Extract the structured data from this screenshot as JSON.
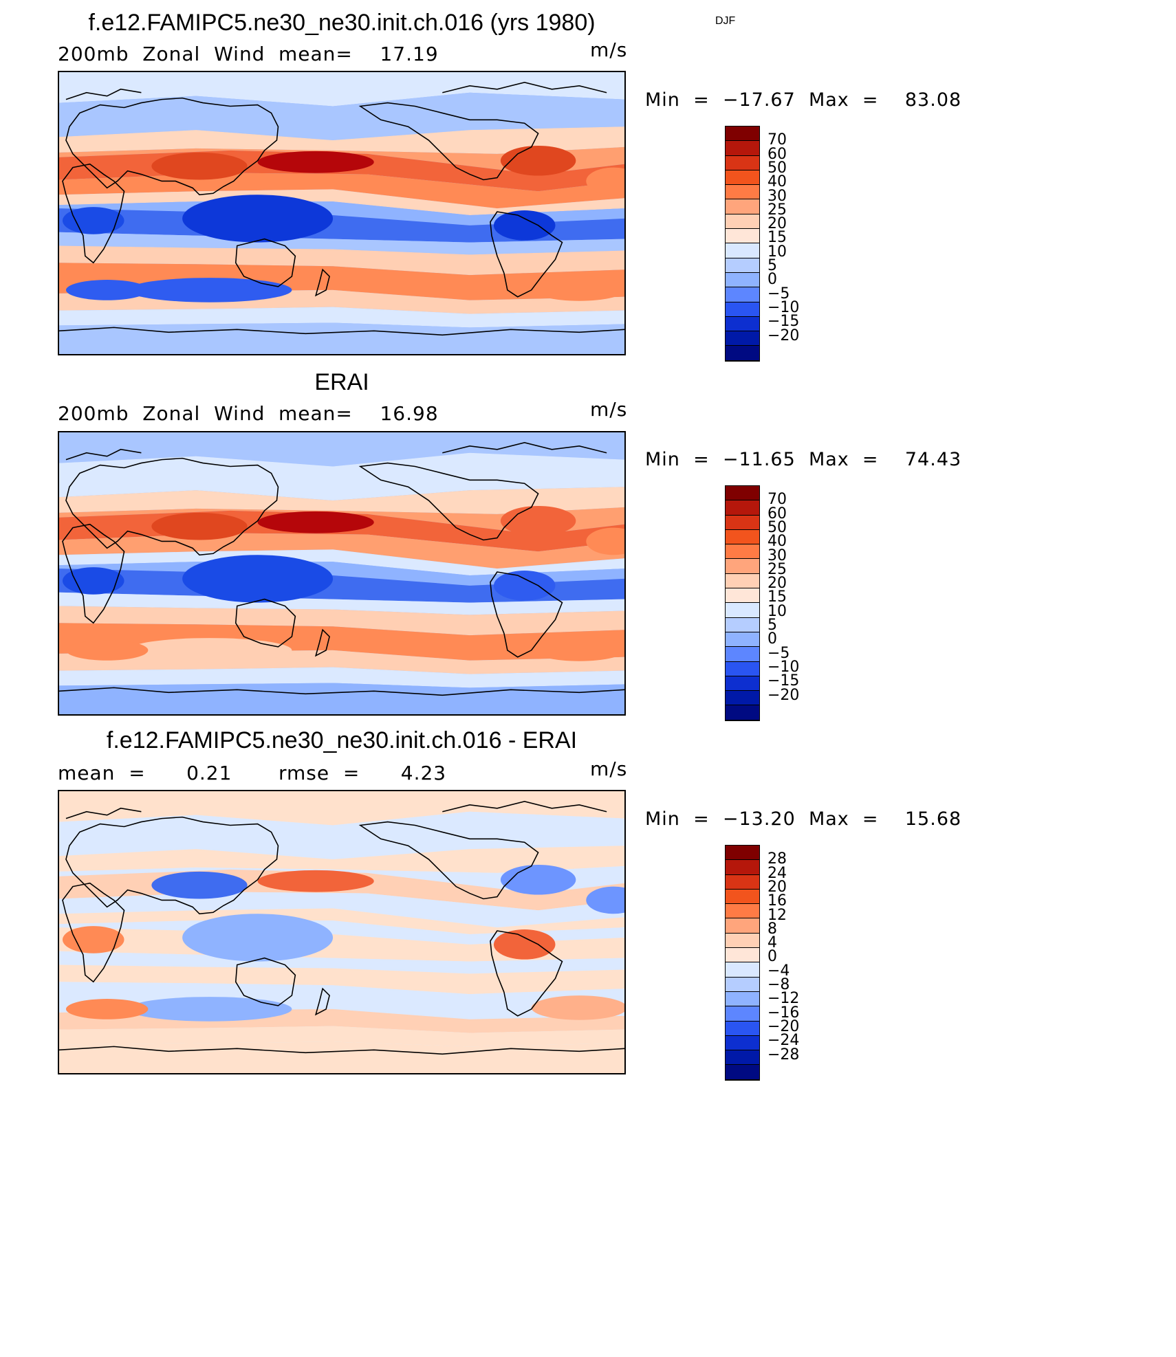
{
  "season": "DJF",
  "panels": [
    {
      "title": "f.e12.FAMIPC5.ne30_ne30.init.ch.016 (yrs 1980)",
      "left_text": "200mb  Zonal  Wind",
      "stat_text": "mean=    17.19",
      "units": "m/s",
      "minmax": "Min  =  −17.67  Max  =    83.08",
      "bg": "#8fb3ff",
      "bands": [
        {
          "c": "#dbe9ff"
        },
        {
          "c": "#a9c6ff"
        },
        {
          "c": "#ffd8bf"
        },
        {
          "c": "#ff9f70"
        },
        {
          "c": "#f2643a"
        },
        {
          "c": "#ff8a55"
        },
        {
          "c": "#ffd6bd"
        },
        {
          "c": "#8fb3ff"
        },
        {
          "c": "#3f6cf0"
        },
        {
          "c": "#a9c6ff"
        },
        {
          "c": "#ffcfb3"
        },
        {
          "c": "#ff8a55"
        },
        {
          "c": "#ffcfb3"
        },
        {
          "c": "#dbe9ff"
        },
        {
          "c": "#a9c6ff"
        }
      ],
      "blobs": [
        {
          "c": "#b5060a"
        },
        {
          "c": "#e0471f"
        },
        {
          "c": "#e0471f"
        },
        {
          "c": "#0d38d9"
        },
        {
          "c": "#1a4be6"
        },
        {
          "c": "#0d38d9"
        },
        {
          "c": "#ff8a55"
        },
        {
          "c": "#ff8a55"
        },
        {
          "c": "#2f5cf0"
        },
        {
          "c": "#2f5cf0"
        }
      ],
      "legend_labels": [
        "70",
        "60",
        "50",
        "40",
        "30",
        "25",
        "20",
        "15",
        "10",
        "5",
        "0",
        "−5",
        "−10",
        "−15",
        "−20"
      ]
    },
    {
      "title": "ERAI",
      "left_text": "200mb  Zonal  Wind",
      "stat_text": "mean=    16.98",
      "units": "m/s",
      "minmax": "Min  =  −11.65  Max  =    74.43",
      "bg": "#8fb3ff",
      "bands": [
        {
          "c": "#a9c6ff"
        },
        {
          "c": "#dbe9ff"
        },
        {
          "c": "#ffd8bf"
        },
        {
          "c": "#ff9f70"
        },
        {
          "c": "#f2643a"
        },
        {
          "c": "#ff9f70"
        },
        {
          "c": "#dbe9ff"
        },
        {
          "c": "#8fb3ff"
        },
        {
          "c": "#3f6cf0"
        },
        {
          "c": "#dbe9ff"
        },
        {
          "c": "#ffcfb3"
        },
        {
          "c": "#ff8a55"
        },
        {
          "c": "#ffcfb3"
        },
        {
          "c": "#dbe9ff"
        },
        {
          "c": "#8fb3ff"
        }
      ],
      "blobs": [
        {
          "c": "#b5060a"
        },
        {
          "c": "#e0471f"
        },
        {
          "c": "#f2643a"
        },
        {
          "c": "#1a4be6"
        },
        {
          "c": "#1a4be6"
        },
        {
          "c": "#2f5cf0"
        },
        {
          "c": "#ff8a55"
        },
        {
          "c": "#ff8a55"
        },
        {
          "c": "#ffcfb3"
        },
        {
          "c": "#ff8a55"
        }
      ],
      "legend_labels": [
        "70",
        "60",
        "50",
        "40",
        "30",
        "25",
        "20",
        "15",
        "10",
        "5",
        "0",
        "−5",
        "−10",
        "−15",
        "−20"
      ]
    },
    {
      "title": "f.e12.FAMIPC5.ne30_ne30.init.ch.016 - ERAI",
      "left_text": "mean  =      0.21",
      "stat_text": "rmse  =      4.23",
      "units": "m/s",
      "minmax": "Min  =  −13.20  Max  =    15.68",
      "bg": "#dbe9ff",
      "bands": [
        {
          "c": "#ffe1cc"
        },
        {
          "c": "#dbe9ff"
        },
        {
          "c": "#ffe1cc"
        },
        {
          "c": "#dbe9ff"
        },
        {
          "c": "#ffd0b5"
        },
        {
          "c": "#dbe9ff"
        },
        {
          "c": "#ffe1cc"
        },
        {
          "c": "#dbe9ff"
        },
        {
          "c": "#ffe1cc"
        },
        {
          "c": "#dbe9ff"
        },
        {
          "c": "#ffe1cc"
        },
        {
          "c": "#dbe9ff"
        },
        {
          "c": "#ffd0b5"
        },
        {
          "c": "#ffe1cc"
        },
        {
          "c": "#ffe1cc"
        }
      ],
      "blobs": [
        {
          "c": "#f2643a"
        },
        {
          "c": "#3f6cf0"
        },
        {
          "c": "#6d95ff"
        },
        {
          "c": "#8fb3ff"
        },
        {
          "c": "#ff8a55"
        },
        {
          "c": "#f2643a"
        },
        {
          "c": "#6d95ff"
        },
        {
          "c": "#ffb08a"
        },
        {
          "c": "#8fb3ff"
        },
        {
          "c": "#ff8a55"
        }
      ],
      "legend_labels": [
        "28",
        "24",
        "20",
        "16",
        "12",
        "8",
        "4",
        "0",
        "−4",
        "−8",
        "−12",
        "−16",
        "−20",
        "−24",
        "−28"
      ]
    }
  ],
  "colorbar_colors": [
    "#7f0000",
    "#b5170b",
    "#d93415",
    "#f2541d",
    "#ff7b45",
    "#ffa57c",
    "#ffd0b5",
    "#ffe6d8",
    "#d9e8ff",
    "#b5cdff",
    "#8fb3ff",
    "#5d86ff",
    "#2a55f2",
    "#0d2fd0",
    "#0019a8",
    "#000a82"
  ]
}
